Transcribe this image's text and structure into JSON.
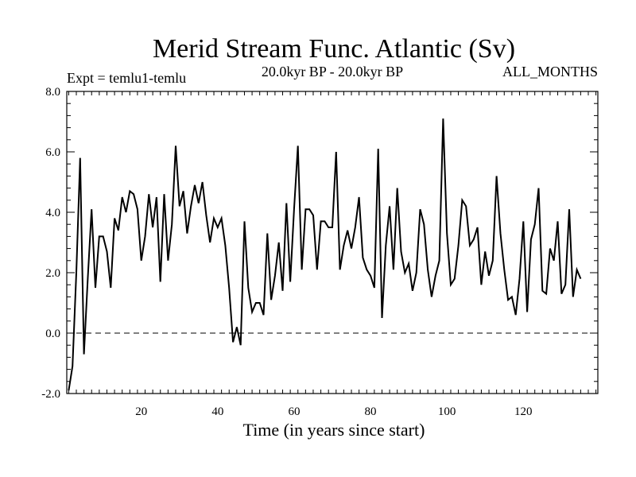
{
  "chart_data": {
    "type": "line",
    "title": "Merid Stream Func. Atlantic (Sv)",
    "subtitle_left": "Expt = temlu1-temlu",
    "subtitle_center": "20.0kyr BP - 20.0kyr BP",
    "subtitle_right": "ALL_MONTHS",
    "xlabel": "Time (in years since start)",
    "ylabel": "",
    "xlim": [
      0.5,
      139.5
    ],
    "ylim": [
      -2.0,
      8.0
    ],
    "x_ticks": [
      20,
      40,
      60,
      80,
      100,
      120
    ],
    "x_tick_labels": [
      "20",
      "40",
      "60",
      "80",
      "100",
      "120"
    ],
    "y_ticks": [
      -2.0,
      0.0,
      2.0,
      4.0,
      6.0,
      8.0
    ],
    "y_tick_labels": [
      "-2.0",
      "0.0",
      "2.0",
      "4.0",
      "6.0",
      "8.0"
    ],
    "reference_line_y": 0.0,
    "grid": false,
    "legend": "none",
    "series": [
      {
        "name": "Merid Stream Func. Atlantic",
        "x_start": 1,
        "x_step": 1,
        "values": [
          -1.9,
          -1.1,
          2.0,
          5.8,
          -0.7,
          1.8,
          4.1,
          1.5,
          3.2,
          3.2,
          2.7,
          1.5,
          3.8,
          3.4,
          4.5,
          4.0,
          4.7,
          4.6,
          4.1,
          2.4,
          3.2,
          4.6,
          3.5,
          4.5,
          1.7,
          4.6,
          2.4,
          3.6,
          6.2,
          4.2,
          4.7,
          3.3,
          4.2,
          4.9,
          4.3,
          5.0,
          3.9,
          3.0,
          3.8,
          3.5,
          3.8,
          2.9,
          1.5,
          -0.3,
          0.2,
          -0.4,
          3.7,
          1.5,
          0.7,
          1.0,
          1.0,
          0.6,
          3.3,
          1.1,
          1.9,
          3.0,
          1.4,
          4.3,
          1.7,
          4.1,
          6.2,
          2.1,
          4.1,
          4.1,
          3.9,
          2.1,
          3.7,
          3.7,
          3.5,
          3.5,
          6.0,
          2.1,
          2.9,
          3.4,
          2.8,
          3.5,
          4.5,
          2.5,
          2.1,
          1.9,
          1.5,
          6.1,
          0.5,
          2.9,
          4.2,
          2.1,
          4.8,
          2.7,
          2.0,
          2.3,
          1.4,
          2.0,
          4.1,
          3.6,
          2.1,
          1.2,
          1.9,
          2.4,
          7.1,
          3.3,
          1.6,
          1.8,
          2.9,
          4.4,
          4.2,
          2.9,
          3.1,
          3.5,
          1.6,
          2.7,
          1.9,
          2.4,
          5.2,
          3.3,
          2.1,
          1.1,
          1.2,
          0.6,
          1.8,
          3.7,
          0.7,
          3.1,
          3.6,
          4.8,
          1.4,
          1.3,
          2.8,
          2.4,
          3.7,
          1.3,
          1.6,
          4.1,
          1.2,
          2.1,
          1.8
        ]
      }
    ]
  }
}
